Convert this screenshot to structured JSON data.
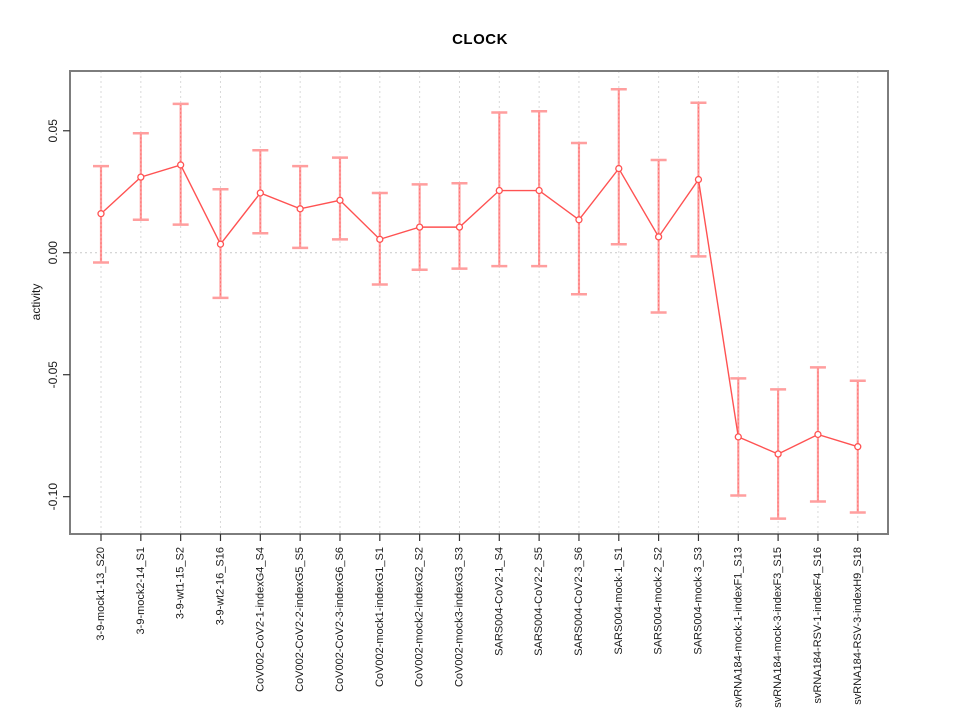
{
  "chart": {
    "title": "CLOCK",
    "y_axis_title": "activity"
  },
  "chart_data": {
    "type": "line",
    "title": "CLOCK",
    "xlabel": "",
    "ylabel": "activity",
    "ylim": [
      -0.1153,
      0.0745
    ],
    "y_ticks": [
      0.05,
      0.0,
      -0.05,
      -0.1
    ],
    "y_tick_labels": [
      "0.05",
      "0.00",
      "-0.05",
      "-0.10"
    ],
    "grid": {
      "vertical_per_category": true,
      "horizontal_zero_line": true,
      "style": "dotted"
    },
    "legend": "none",
    "marker": "open-circle",
    "error_bars": true,
    "colors": {
      "point_line": "#ff5252",
      "error_bar": "#ff9e9e",
      "grid": "#d9d9d9",
      "zero_line": "#c9c9c9",
      "frame": "#7d7d7d",
      "tick": "#333333",
      "text": "#1a1a1a"
    },
    "categories": [
      "3-9-mock1-13_S20",
      "3-9-mock2-14_S1",
      "3-9-wt1-15_S2",
      "3-9-wt2-16_S16",
      "CoV002-CoV2-1-indexG4_S4",
      "CoV002-CoV2-2-indexG5_S5",
      "CoV002-CoV2-3-indexG6_S6",
      "CoV002-mock1-indexG1_S1",
      "CoV002-mock2-indexG2_S2",
      "CoV002-mock3-indexG3_S3",
      "SARS004-CoV2-1_S4",
      "SARS004-CoV2-2_S5",
      "SARS004-CoV2-3_S6",
      "SARS004-mock-1_S1",
      "SARS004-mock-2_S2",
      "SARS004-mock-3_S3",
      "svRNA184-mock-1-indexF1_S13",
      "svRNA184-mock-3-indexF3_S15",
      "svRNA184-RSV-1-indexF4_S16",
      "svRNA184-RSV-3-indexH9_S18"
    ],
    "series": [
      {
        "name": "activity",
        "values": [
          0.016,
          0.031,
          0.036,
          0.0035,
          0.0245,
          0.018,
          0.0215,
          0.0055,
          0.0105,
          0.0105,
          0.0255,
          0.0255,
          0.0135,
          0.0345,
          0.0065,
          0.03,
          -0.0755,
          -0.0825,
          -0.0745,
          -0.0795
        ],
        "ci_high": [
          0.0355,
          0.049,
          0.061,
          0.026,
          0.042,
          0.0355,
          0.039,
          0.0245,
          0.028,
          0.0285,
          0.0575,
          0.058,
          0.045,
          0.067,
          0.038,
          0.0615,
          -0.0515,
          -0.056,
          -0.047,
          -0.0525
        ],
        "ci_low": [
          -0.004,
          0.0135,
          0.0115,
          -0.0185,
          0.008,
          0.002,
          0.0055,
          -0.013,
          -0.007,
          -0.0065,
          -0.0055,
          -0.0055,
          -0.017,
          0.0035,
          -0.0245,
          -0.0015,
          -0.0995,
          -0.109,
          -0.102,
          -0.1065
        ]
      }
    ]
  }
}
